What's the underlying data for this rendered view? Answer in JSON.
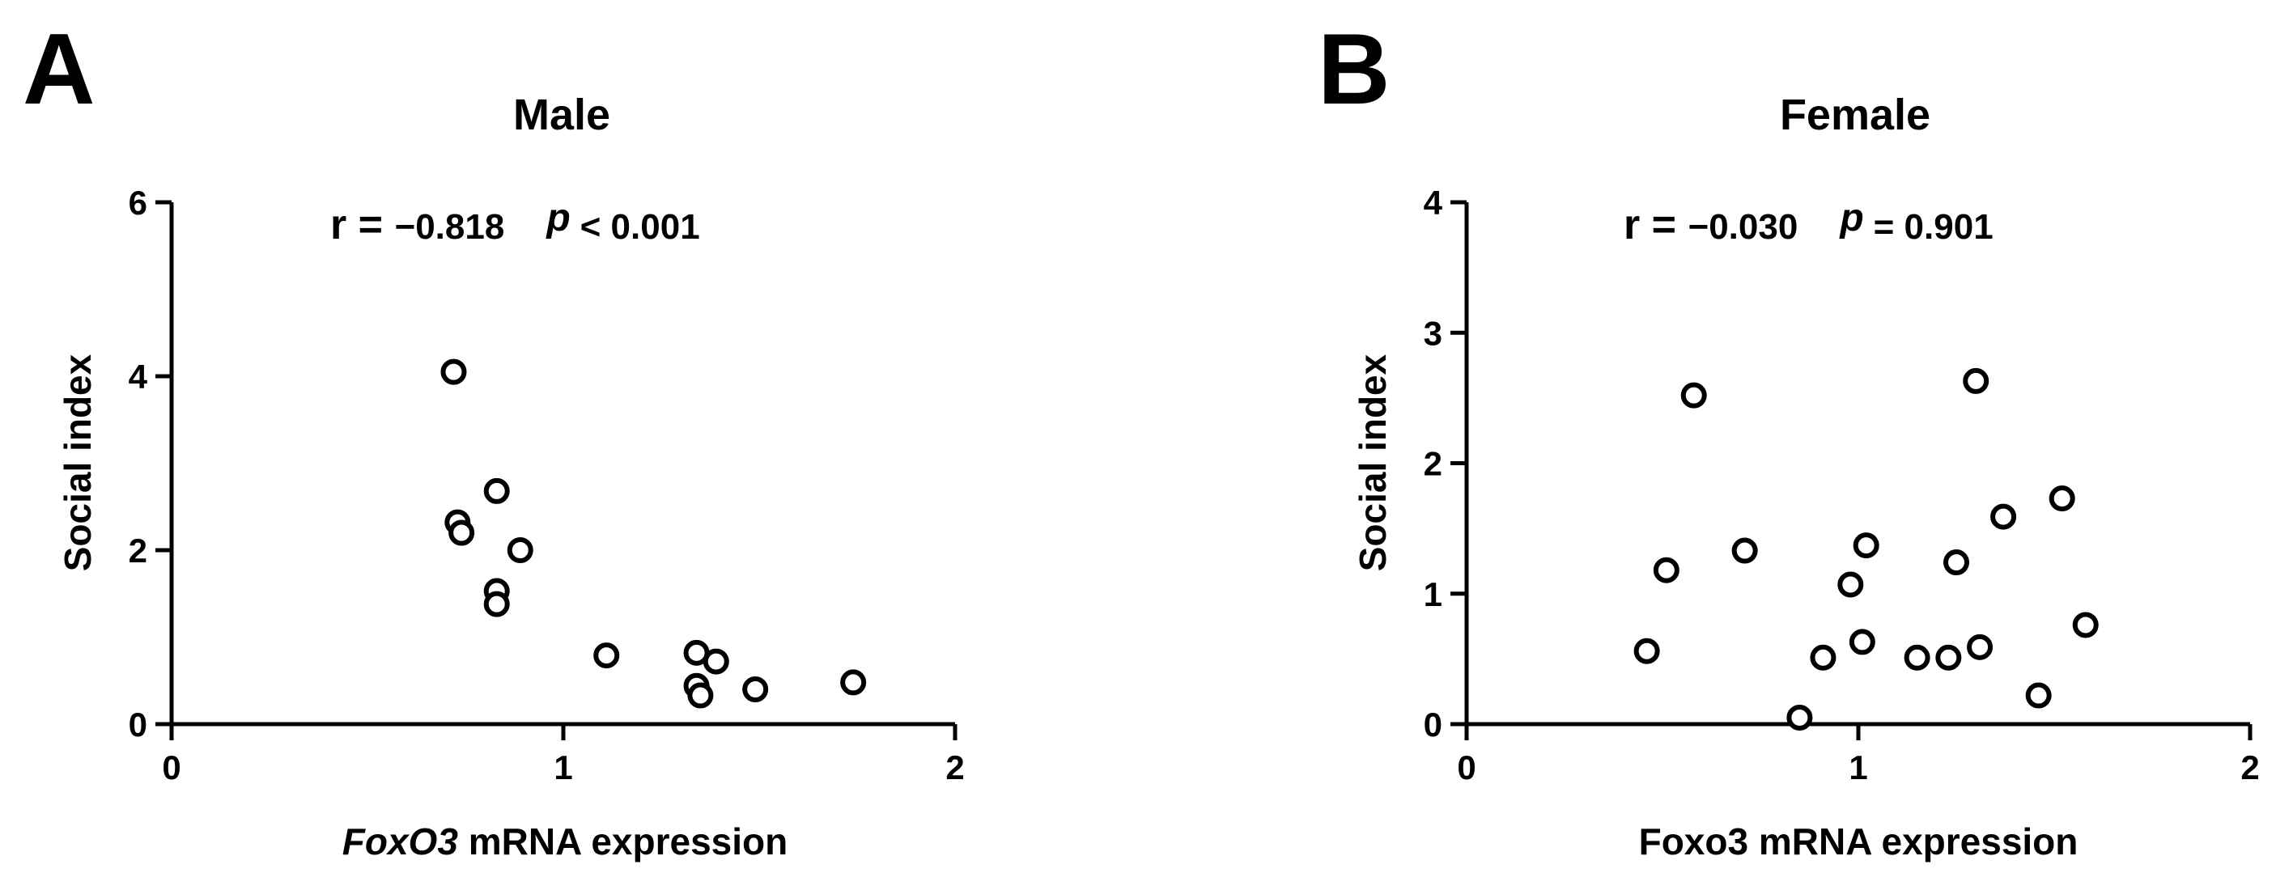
{
  "chart_data": [
    {
      "type": "scatter",
      "panel_label": "A",
      "title": "Male",
      "stats": {
        "r_label": "r = ",
        "r_value": "−0.818",
        "p_label": "p",
        "p_value": "< 0.001"
      },
      "xlabel_italic": "FoxO3",
      "xlabel_rest": " mRNA expression",
      "ylabel": "Social index",
      "xlim": [
        0,
        2
      ],
      "ylim": [
        0,
        6
      ],
      "xticks": [
        0,
        1,
        2
      ],
      "yticks": [
        0,
        2,
        4,
        6
      ],
      "points": [
        {
          "x": 0.72,
          "y": 4.05
        },
        {
          "x": 0.73,
          "y": 2.32
        },
        {
          "x": 0.74,
          "y": 2.2
        },
        {
          "x": 0.83,
          "y": 2.68
        },
        {
          "x": 0.89,
          "y": 2.0
        },
        {
          "x": 0.83,
          "y": 1.53
        },
        {
          "x": 0.83,
          "y": 1.38
        },
        {
          "x": 1.11,
          "y": 0.79
        },
        {
          "x": 1.34,
          "y": 0.82
        },
        {
          "x": 1.39,
          "y": 0.72
        },
        {
          "x": 1.34,
          "y": 0.44
        },
        {
          "x": 1.35,
          "y": 0.33
        },
        {
          "x": 1.49,
          "y": 0.4
        },
        {
          "x": 1.74,
          "y": 0.48
        }
      ]
    },
    {
      "type": "scatter",
      "panel_label": "B",
      "title": "Female",
      "stats": {
        "r_label": "r = ",
        "r_value": "−0.030",
        "p_label": "p",
        "p_value": "= 0.901"
      },
      "xlabel_italic": "",
      "xlabel_rest": "Foxo3 mRNA expression",
      "ylabel": "Social index",
      "xlim": [
        0,
        2
      ],
      "ylim": [
        0,
        4
      ],
      "xticks": [
        0,
        1,
        2
      ],
      "yticks": [
        0,
        1,
        2,
        3,
        4
      ],
      "points": [
        {
          "x": 0.58,
          "y": 2.52
        },
        {
          "x": 1.3,
          "y": 2.63
        },
        {
          "x": 0.51,
          "y": 1.18
        },
        {
          "x": 0.71,
          "y": 1.33
        },
        {
          "x": 1.02,
          "y": 1.37
        },
        {
          "x": 1.25,
          "y": 1.24
        },
        {
          "x": 1.37,
          "y": 1.59
        },
        {
          "x": 1.52,
          "y": 1.73
        },
        {
          "x": 0.98,
          "y": 1.07
        },
        {
          "x": 1.01,
          "y": 0.63
        },
        {
          "x": 0.46,
          "y": 0.56
        },
        {
          "x": 0.91,
          "y": 0.51
        },
        {
          "x": 1.15,
          "y": 0.51
        },
        {
          "x": 1.23,
          "y": 0.51
        },
        {
          "x": 1.31,
          "y": 0.59
        },
        {
          "x": 1.58,
          "y": 0.76
        },
        {
          "x": 0.85,
          "y": 0.05
        },
        {
          "x": 1.46,
          "y": 0.22
        }
      ]
    }
  ]
}
